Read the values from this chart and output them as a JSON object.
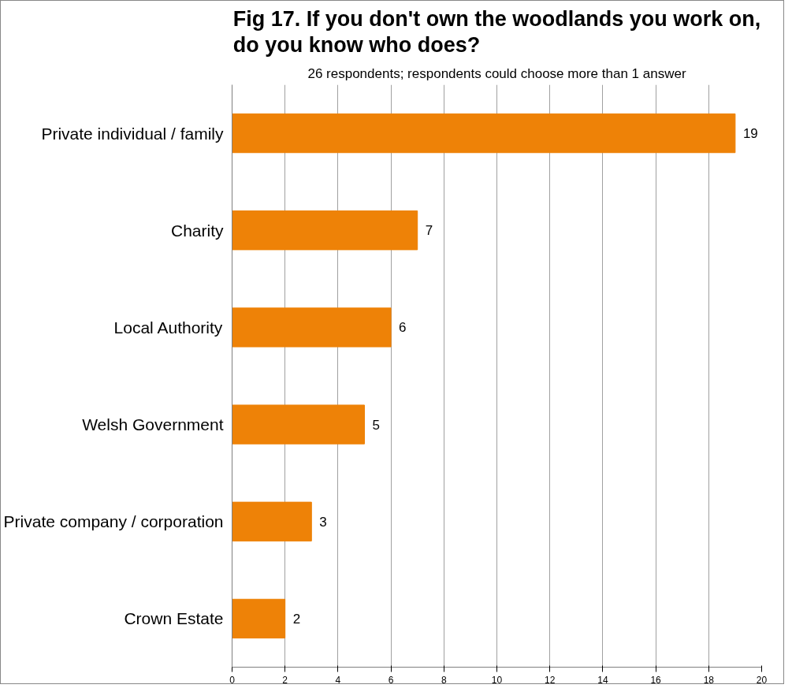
{
  "chart_data": {
    "type": "bar",
    "orientation": "horizontal",
    "title": "Fig 17. If you don't own the woodlands you work on, do you know who does?",
    "subtitle": "26 respondents; respondents could choose more than 1 answer",
    "categories": [
      "Private individual / family",
      "Charity",
      "Local Authority",
      "Welsh Government",
      "Private company / corporation",
      "Crown Estate"
    ],
    "values": [
      19,
      7,
      6,
      5,
      3,
      2
    ],
    "color": "#ee8207",
    "xlim": [
      0,
      20
    ],
    "xticks": [
      0,
      2,
      4,
      6,
      8,
      10,
      12,
      14,
      16,
      18,
      20
    ],
    "grid": "x",
    "data_labels": true
  }
}
